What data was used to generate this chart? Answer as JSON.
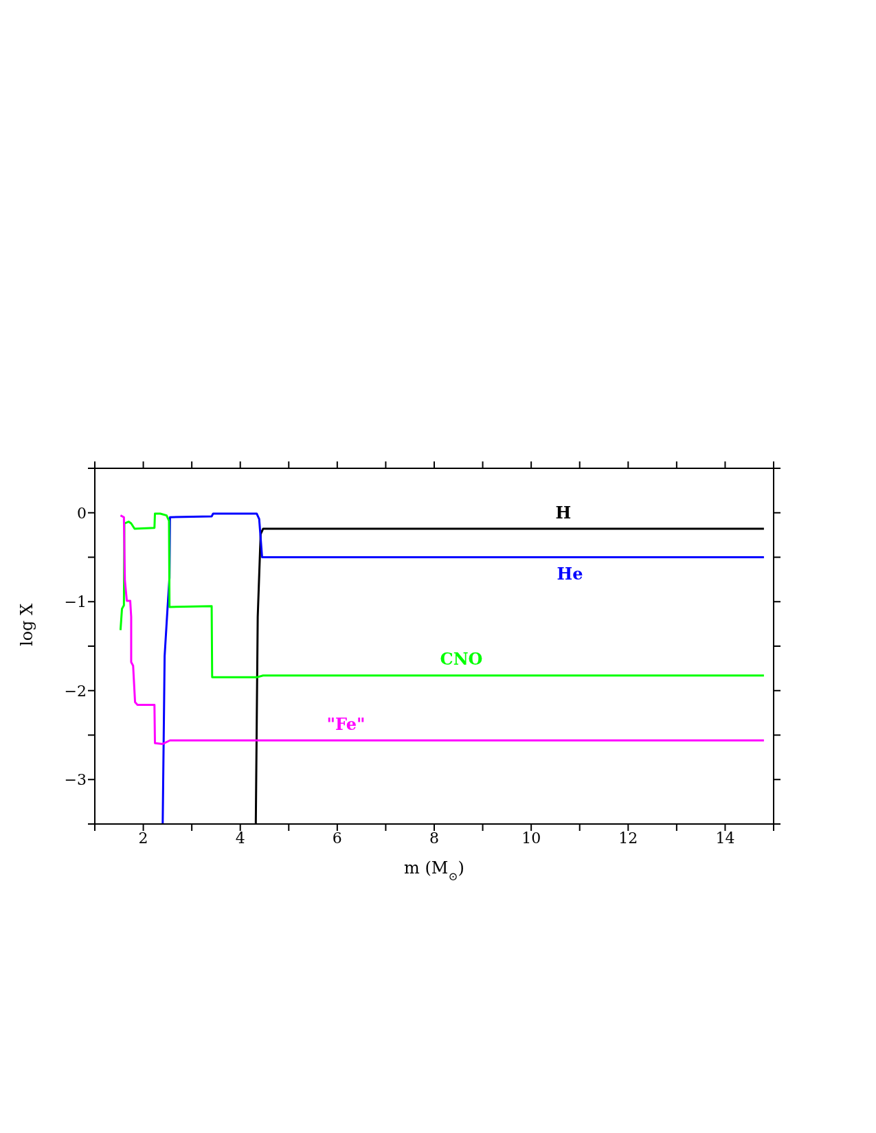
{
  "chart_data": {
    "type": "line",
    "xlabel": "m (M$_{⊙}$)",
    "ylabel": "log X",
    "xlim": [
      1,
      15
    ],
    "ylim": [
      -3.5,
      0.5
    ],
    "xticks": [
      {
        "value": 1,
        "label": null
      },
      2,
      {
        "value": 3,
        "label": null
      },
      4,
      {
        "value": 5,
        "label": null
      },
      6,
      {
        "value": 7,
        "label": null
      },
      8,
      {
        "value": 9,
        "label": null
      },
      10,
      {
        "value": 11,
        "label": null
      },
      12,
      {
        "value": 13,
        "label": null
      },
      14,
      {
        "value": 15,
        "label": null
      }
    ],
    "yticks": [
      {
        "value": -3.5,
        "label": null
      },
      -3,
      {
        "value": -2.5,
        "label": null
      },
      -2,
      {
        "value": -1.5,
        "label": null
      },
      -1,
      {
        "value": -0.5,
        "label": null
      },
      0,
      {
        "value": 0.5,
        "label": null
      }
    ],
    "legend": false,
    "marker": "none",
    "line_style": "solid",
    "series": [
      {
        "name": "H",
        "color": "#000000",
        "x": [
          4.32,
          4.36,
          4.42,
          4.47,
          14.8
        ],
        "values": [
          -3.5,
          -1.17,
          -0.24,
          -0.18,
          -0.18
        ]
      },
      {
        "name": "He",
        "color": "#0000ff",
        "x": [
          2.4,
          2.44,
          2.5,
          2.54,
          2.55,
          3.41,
          3.44,
          4.34,
          4.39,
          4.45,
          14.8
        ],
        "values": [
          -3.5,
          -1.61,
          -1.07,
          -0.73,
          -0.05,
          -0.04,
          -0.01,
          -0.01,
          -0.07,
          -0.5,
          -0.5
        ]
      },
      {
        "name": "CNO",
        "color": "#00ff00",
        "x": [
          1.53,
          1.56,
          1.6,
          1.61,
          1.7,
          1.75,
          1.82,
          2.23,
          2.24,
          2.35,
          2.48,
          2.53,
          2.54,
          3.41,
          3.42,
          4.34,
          4.47,
          14.8
        ],
        "values": [
          -1.32,
          -1.08,
          -1.04,
          -0.12,
          -0.1,
          -0.12,
          -0.18,
          -0.17,
          -0.01,
          -0.01,
          -0.03,
          -0.09,
          -1.06,
          -1.05,
          -1.85,
          -1.85,
          -1.83,
          -1.83
        ]
      },
      {
        "name": "\"Fe\"",
        "color": "#ff00ff",
        "x": [
          1.53,
          1.6,
          1.62,
          1.66,
          1.73,
          1.75,
          1.75,
          1.79,
          1.83,
          1.88,
          2.23,
          2.24,
          2.4,
          2.55,
          14.8
        ],
        "values": [
          -0.03,
          -0.05,
          -0.76,
          -0.99,
          -0.99,
          -1.17,
          -1.68,
          -1.72,
          -2.13,
          -2.16,
          -2.16,
          -2.59,
          -2.6,
          -2.56,
          -2.56
        ]
      }
    ]
  }
}
